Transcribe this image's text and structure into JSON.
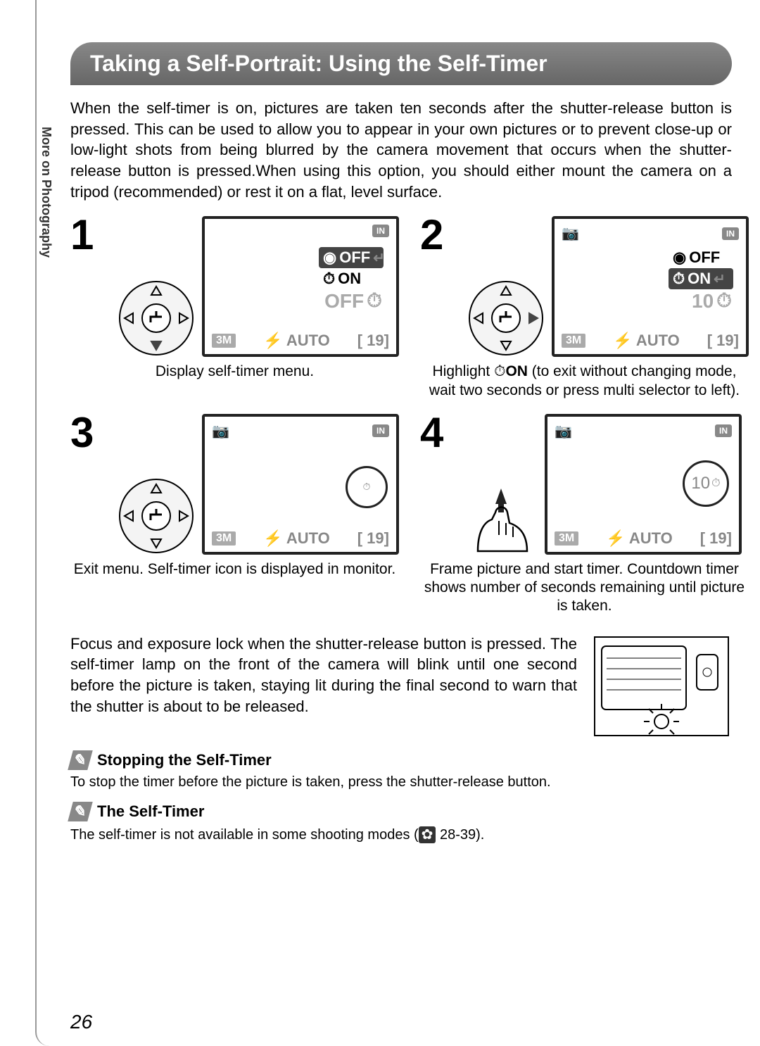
{
  "sideLabel": "More on Photography",
  "title": "Taking a Self-Portrait: Using the Self-Timer",
  "intro": "When the self-timer is on, pictures are taken ten seconds after the shutter-release button is pressed. This can be used to allow you to appear in your own pictures or to prevent close-up or low-light shots from being blurred by the camera movement that occurs when the shutter-release button is pressed.When using this option, you should either mount the camera on a tripod (recommended) or rest it on a flat, level surface.",
  "steps": [
    {
      "num": "1",
      "caption": "Display self-timer menu.",
      "lcd": {
        "menuHighlight": "off",
        "bigOff": "OFF",
        "count": null,
        "showCam": false
      }
    },
    {
      "num": "2",
      "captionPre": "Highlight ",
      "captionBold": "ON",
      "captionPost": " (to exit without changing mode, wait two seconds or press multi selector to left).",
      "lcd": {
        "menuHighlight": "on",
        "bigOff": null,
        "count": "10",
        "showCam": true
      }
    },
    {
      "num": "3",
      "caption": "Exit menu. Self-timer icon is displayed in monitor.",
      "lcd": {
        "menuHighlight": null,
        "bigOff": null,
        "count": null,
        "showCam": true,
        "timerIcon": true
      }
    },
    {
      "num": "4",
      "caption": "Frame picture and start timer. Countdown timer shows number of seconds remaining until picture is taken.",
      "lcd": {
        "menuHighlight": null,
        "bigOff": null,
        "count": null,
        "showCam": true,
        "countdown": "10"
      },
      "finger": true
    }
  ],
  "lcdCommon": {
    "in": "IN",
    "size": "3M",
    "flash": "⚡ AUTO",
    "frames": "[  19]",
    "off": "OFF",
    "on": "ON"
  },
  "para2": "Focus and exposure lock when the shutter-release button is pressed. The self-timer lamp on the front of the camera will blink until one second before the picture is taken, staying lit during the final second to warn that the shutter is about to be released.",
  "notes": [
    {
      "head": "Stopping the Self-Timer",
      "body": "To stop the timer before the picture is taken, press the shutter-release button."
    },
    {
      "head": "The Self-Timer",
      "bodyPre": "The self-timer is not available in some shooting modes (",
      "bodyIcon": "📷",
      "bodyPost": " 28-39)."
    }
  ],
  "pageNum": "26"
}
